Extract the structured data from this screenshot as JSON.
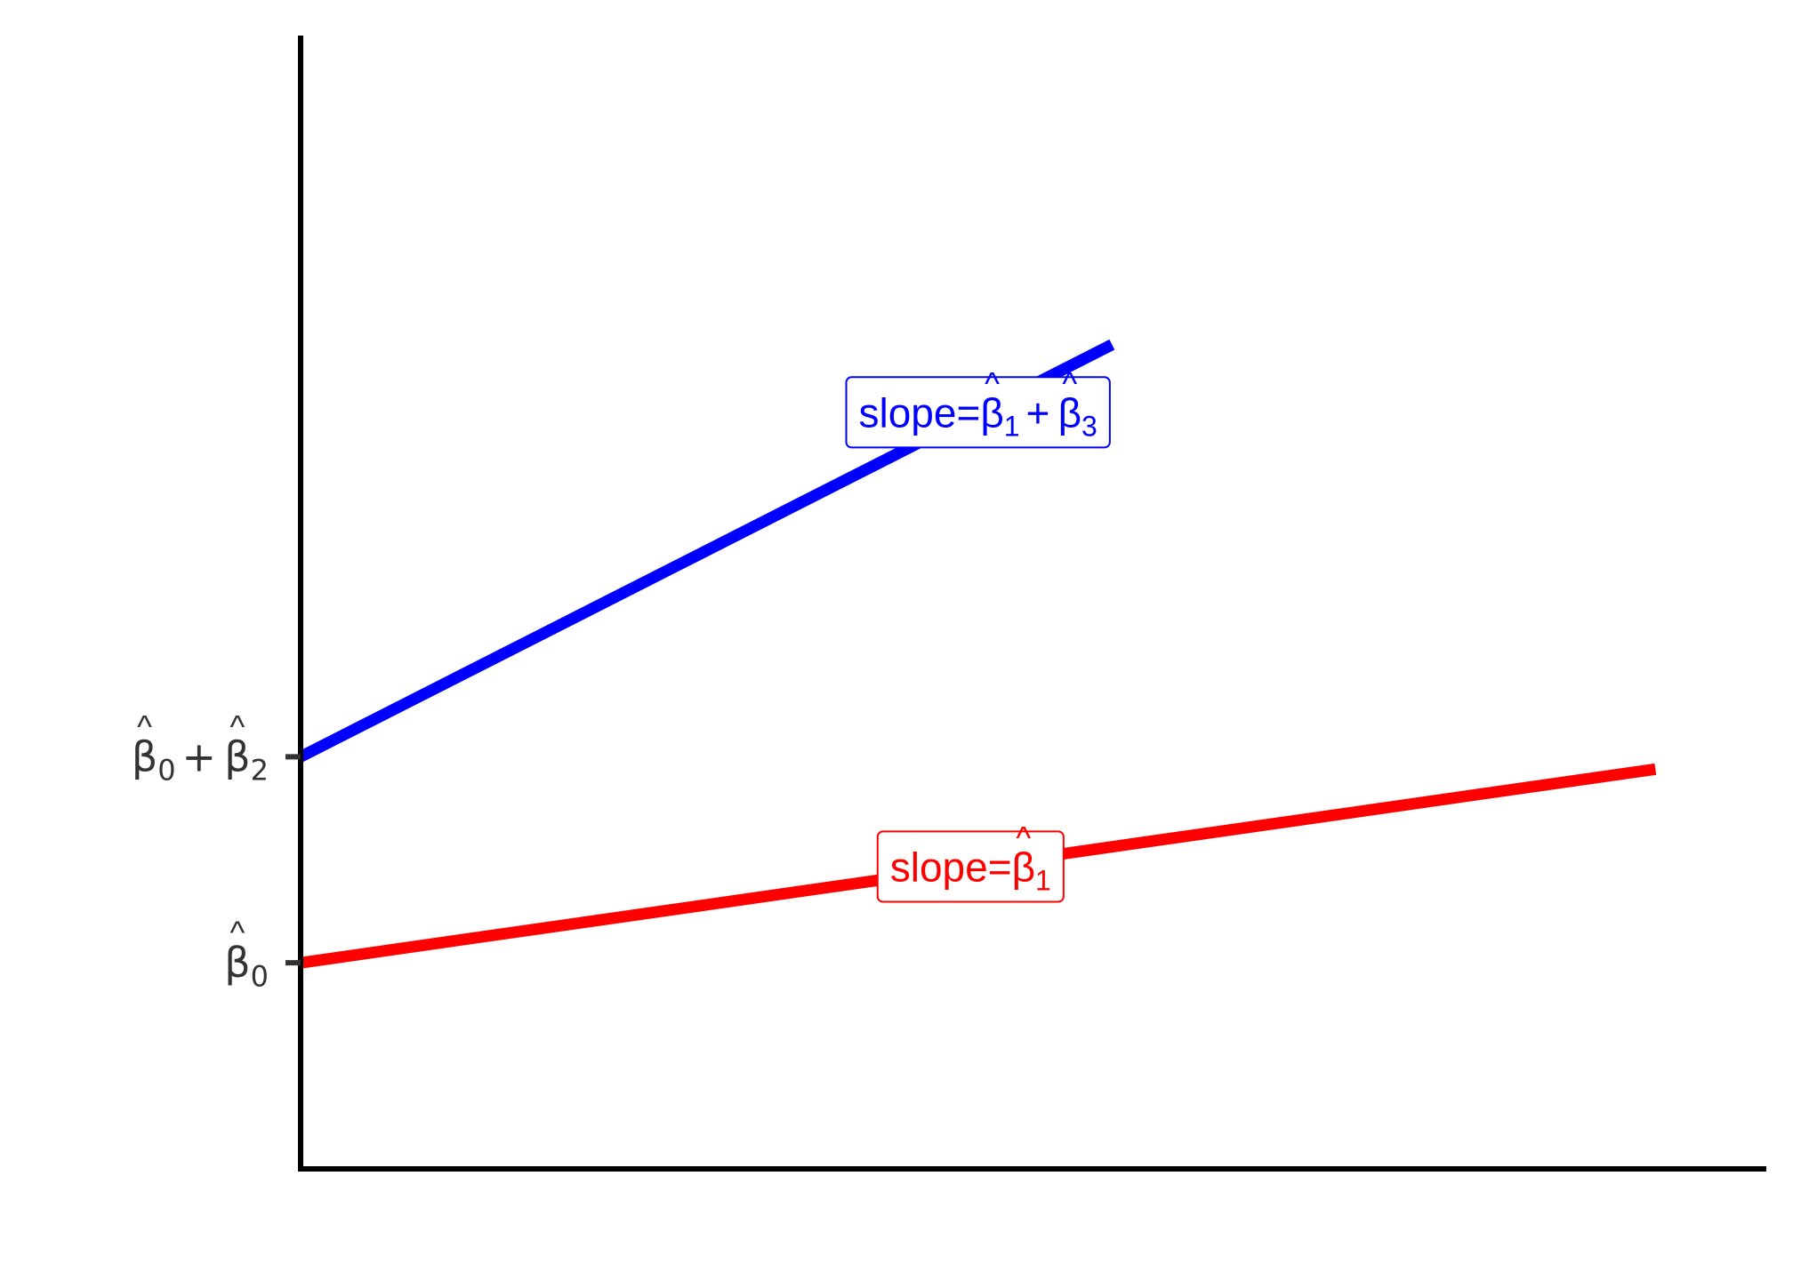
{
  "chart_data": {
    "type": "line",
    "series": [
      {
        "key": "red",
        "color": "#ff0000",
        "x": [
          0,
          0.91
        ],
        "y": [
          0,
          0.47
        ],
        "label": {
          "prefix": "slope=",
          "terms": [
            {
              "sym": "β",
              "sub": "1"
            }
          ],
          "at_x": 0.45
        }
      },
      {
        "key": "blue",
        "color": "#0000ff",
        "x": [
          0,
          0.545
        ],
        "y": [
          0.5,
          1.5
        ],
        "label": {
          "prefix": "slope=",
          "terms": [
            {
              "sym": "β",
              "sub": "1"
            },
            {
              "sym": "β",
              "sub": "3"
            }
          ],
          "joiner": "+",
          "at_x": 0.455
        }
      }
    ],
    "yticks": [
      {
        "value": 0,
        "terms": [
          {
            "sym": "β",
            "sub": "0"
          }
        ]
      },
      {
        "value": 0.5,
        "terms": [
          {
            "sym": "β",
            "sub": "0"
          },
          {
            "sym": "β",
            "sub": "2"
          }
        ],
        "joiner": "+"
      }
    ],
    "xlim": [
      0,
      1
    ],
    "ylim": [
      -0.5,
      2.25
    ],
    "grid": false,
    "legend": "none",
    "hat": "^"
  }
}
